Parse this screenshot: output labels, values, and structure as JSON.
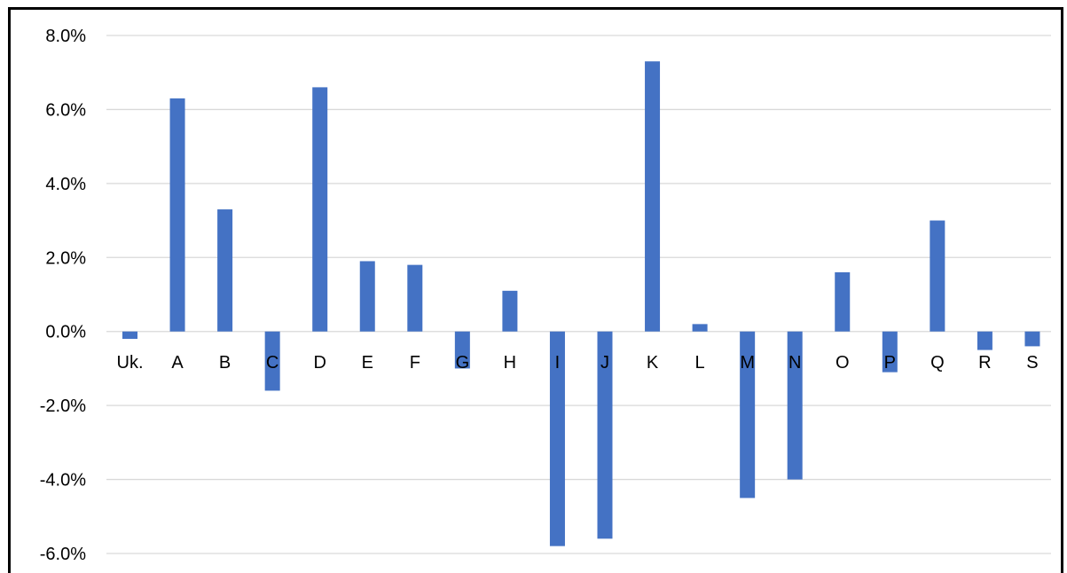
{
  "chart_data": {
    "type": "bar",
    "categories": [
      "Uk.",
      "A",
      "B",
      "C",
      "D",
      "E",
      "F",
      "G",
      "H",
      "I",
      "J",
      "K",
      "L",
      "M",
      "N",
      "O",
      "P",
      "Q",
      "R",
      "S"
    ],
    "series": [
      {
        "values": [
          -0.2,
          6.3,
          3.3,
          -1.6,
          6.6,
          1.9,
          1.8,
          -1.0,
          1.1,
          -5.8,
          -5.6,
          7.3,
          0.2,
          -4.5,
          -4.0,
          1.6,
          -1.1,
          3.0,
          -0.5,
          -0.4
        ]
      }
    ],
    "title": "",
    "xlabel": "",
    "ylabel": "",
    "ylim": [
      -6,
      8
    ],
    "ytick_step": 2,
    "ytick_labels": [
      "-6.0%",
      "-4.0%",
      "-2.0%",
      "0.0%",
      "2.0%",
      "4.0%",
      "6.0%",
      "8.0%"
    ],
    "grid": true,
    "legend": "none",
    "bar_color": "#4472c4",
    "grid_color": "#d9d9d9"
  }
}
